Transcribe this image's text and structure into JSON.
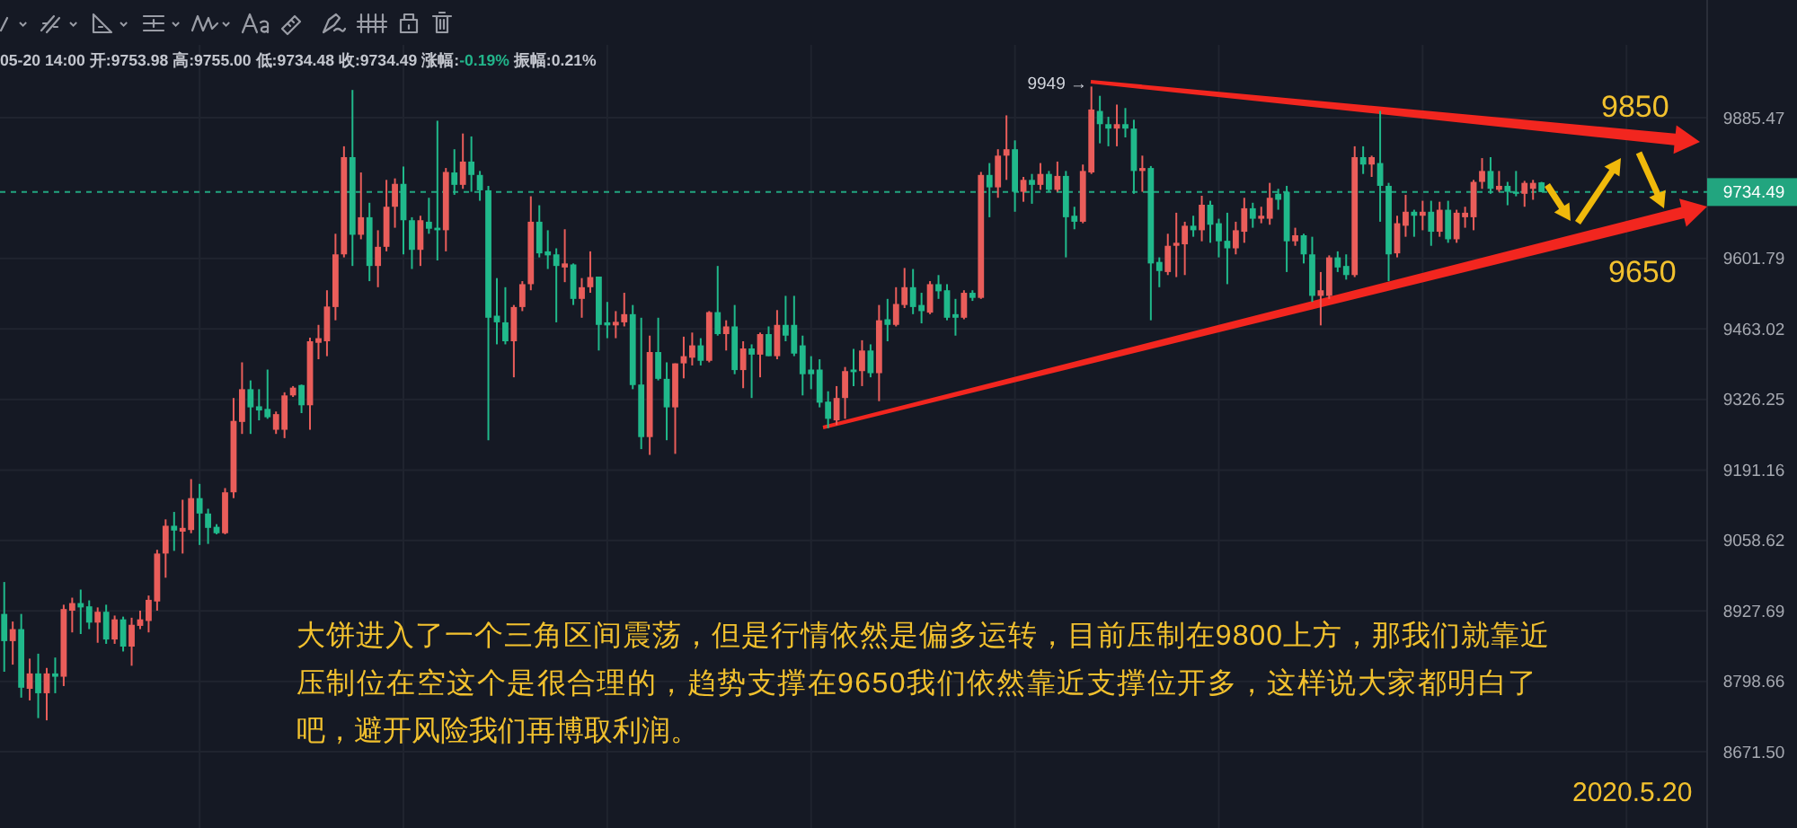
{
  "chart_data": {
    "type": "candlestick",
    "categories": [
      null,
      null,
      null,
      null,
      null,
      null,
      null,
      null,
      null,
      null,
      null,
      null,
      null,
      null,
      null,
      null,
      null,
      null,
      null,
      null,
      null,
      null,
      null,
      null,
      null,
      null,
      null,
      null,
      null,
      null,
      null,
      null,
      null,
      null,
      null,
      null,
      null,
      null,
      null,
      null,
      null,
      null,
      null,
      null,
      null,
      null,
      null,
      null,
      null,
      null,
      null,
      null,
      null,
      null,
      null,
      null,
      null,
      null,
      null,
      null,
      null,
      null,
      null,
      null,
      null,
      null,
      null,
      null,
      null,
      null,
      null,
      null,
      null,
      null,
      null,
      null,
      null,
      null,
      null,
      null,
      null,
      null,
      null,
      null,
      null,
      null,
      null,
      null,
      null,
      null,
      null,
      null,
      null,
      null,
      null,
      null,
      null,
      null,
      null,
      null,
      null,
      null,
      null,
      null,
      null,
      null,
      null,
      null,
      null,
      null,
      null,
      null,
      null,
      null,
      null,
      null,
      null,
      null,
      null,
      null,
      null,
      null,
      null,
      null,
      null,
      null,
      null,
      null,
      null,
      null,
      null,
      null,
      null,
      null,
      null,
      null,
      null,
      null,
      null,
      null,
      null,
      null,
      null,
      null,
      null,
      null,
      null,
      null,
      null,
      null,
      null,
      null,
      null,
      null,
      null,
      null,
      null,
      null,
      null,
      null,
      null,
      null,
      null,
      null,
      null,
      null,
      null,
      null,
      null,
      null,
      null,
      null,
      null,
      null,
      null,
      null,
      null,
      null,
      null,
      null,
      null,
      null,
      null,
      null,
      null,
      null,
      null,
      null,
      null,
      null,
      null,
      null,
      null,
      null,
      null,
      null,
      null,
      null,
      null,
      null,
      null
    ],
    "ohlc": [
      [
        8922,
        8981,
        8816,
        8872
      ],
      [
        8872,
        8908,
        8829,
        8894
      ],
      [
        8894,
        8922,
        8769,
        8787
      ],
      [
        8785,
        8840,
        8764,
        8813
      ],
      [
        8813,
        8849,
        8732,
        8777
      ],
      [
        8777,
        8823,
        8728,
        8813
      ],
      [
        8813,
        8842,
        8777,
        8807
      ],
      [
        8807,
        8939,
        8790,
        8931
      ],
      [
        8928,
        8952,
        8888,
        8942
      ],
      [
        8942,
        8967,
        8885,
        8934
      ],
      [
        8936,
        8947,
        8894,
        8906
      ],
      [
        8906,
        8934,
        8869,
        8926
      ],
      [
        8926,
        8939,
        8867,
        8875
      ],
      [
        8875,
        8919,
        8867,
        8912
      ],
      [
        8912,
        8917,
        8853,
        8862
      ],
      [
        8862,
        8915,
        8827,
        8902
      ],
      [
        8900,
        8928,
        8894,
        8912
      ],
      [
        8909,
        8956,
        8888,
        8948
      ],
      [
        8945,
        9041,
        8928,
        9034
      ],
      [
        9034,
        9098,
        8989,
        9086
      ],
      [
        9086,
        9112,
        9039,
        9077
      ],
      [
        9075,
        9135,
        9034,
        9082
      ],
      [
        9078,
        9174,
        9072,
        9138
      ],
      [
        9138,
        9165,
        9050,
        9109
      ],
      [
        9109,
        9118,
        9052,
        9082
      ],
      [
        9084,
        9089,
        9070,
        9072
      ],
      [
        9072,
        9157,
        9070,
        9149
      ],
      [
        9149,
        9329,
        9138,
        9285
      ],
      [
        9283,
        9398,
        9260,
        9346
      ],
      [
        9346,
        9363,
        9260,
        9311
      ],
      [
        9313,
        9346,
        9286,
        9305
      ],
      [
        9308,
        9384,
        9289,
        9292
      ],
      [
        9268,
        9303,
        9260,
        9298
      ],
      [
        9268,
        9340,
        9252,
        9334
      ],
      [
        9334,
        9352,
        9331,
        9349
      ],
      [
        9354,
        9355,
        9300,
        9315
      ],
      [
        9315,
        9446,
        9268,
        9439
      ],
      [
        9436,
        9471,
        9404,
        9445
      ],
      [
        9439,
        9539,
        9410,
        9507
      ],
      [
        9506,
        9651,
        9480,
        9610
      ],
      [
        9610,
        9827,
        9604,
        9805
      ],
      [
        9805,
        9942,
        9587,
        9649
      ],
      [
        9649,
        9774,
        9640,
        9684
      ],
      [
        9684,
        9713,
        9557,
        9587
      ],
      [
        9587,
        9658,
        9545,
        9625
      ],
      [
        9625,
        9759,
        9616,
        9705
      ],
      [
        9705,
        9762,
        9663,
        9751
      ],
      [
        9751,
        9786,
        9610,
        9678
      ],
      [
        9678,
        9684,
        9581,
        9619
      ],
      [
        9619,
        9687,
        9587,
        9678
      ],
      [
        9675,
        9723,
        9651,
        9661
      ],
      [
        9663,
        9879,
        9598,
        9658
      ],
      [
        9658,
        9783,
        9616,
        9775
      ],
      [
        9774,
        9821,
        9729,
        9749
      ],
      [
        9749,
        9853,
        9741,
        9796
      ],
      [
        9796,
        9847,
        9735,
        9769
      ],
      [
        9769,
        9777,
        9717,
        9738
      ],
      [
        9738,
        9747,
        9248,
        9485
      ],
      [
        9489,
        9563,
        9433,
        9476
      ],
      [
        9476,
        9545,
        9433,
        9439
      ],
      [
        9439,
        9510,
        9369,
        9506
      ],
      [
        9506,
        9557,
        9498,
        9551
      ],
      [
        9551,
        9726,
        9539,
        9675
      ],
      [
        9675,
        9708,
        9604,
        9612
      ],
      [
        9616,
        9658,
        9581,
        9608
      ],
      [
        9610,
        9622,
        9476,
        9587
      ],
      [
        9584,
        9660,
        9555,
        9592
      ],
      [
        9590,
        9592,
        9510,
        9522
      ],
      [
        9522,
        9563,
        9485,
        9545
      ],
      [
        9545,
        9616,
        9534,
        9565
      ],
      [
        9566,
        9566,
        9421,
        9471
      ],
      [
        9476,
        9516,
        9445,
        9470
      ],
      [
        9470,
        9498,
        9445,
        9477
      ],
      [
        9476,
        9534,
        9468,
        9492
      ],
      [
        9492,
        9510,
        9346,
        9354
      ],
      [
        9355,
        9485,
        9231,
        9254
      ],
      [
        9254,
        9450,
        9220,
        9418
      ],
      [
        9418,
        9485,
        9363,
        9366
      ],
      [
        9366,
        9398,
        9248,
        9311
      ],
      [
        9311,
        9396,
        9222,
        9396
      ],
      [
        9396,
        9448,
        9367,
        9410
      ],
      [
        9407,
        9456,
        9392,
        9431
      ],
      [
        9431,
        9445,
        9392,
        9401
      ],
      [
        9401,
        9498,
        9398,
        9496
      ],
      [
        9496,
        9587,
        9450,
        9453
      ],
      [
        9453,
        9480,
        9421,
        9468
      ],
      [
        9468,
        9510,
        9375,
        9383
      ],
      [
        9383,
        9439,
        9348,
        9425
      ],
      [
        9425,
        9433,
        9329,
        9413
      ],
      [
        9413,
        9456,
        9369,
        9453
      ],
      [
        9453,
        9468,
        9410,
        9410
      ],
      [
        9410,
        9500,
        9404,
        9471
      ],
      [
        9471,
        9528,
        9439,
        9450
      ],
      [
        9471,
        9528,
        9410,
        9415
      ],
      [
        9431,
        9450,
        9334,
        9375
      ],
      [
        9384,
        9410,
        9346,
        9375
      ],
      [
        9384,
        9404,
        9311,
        9320
      ],
      [
        9322,
        9342,
        9271,
        9289
      ],
      [
        9286,
        9352,
        9277,
        9329
      ],
      [
        9329,
        9389,
        9289,
        9381
      ],
      [
        9384,
        9424,
        9352,
        9379
      ],
      [
        9381,
        9441,
        9352,
        9421
      ],
      [
        9421,
        9433,
        9369,
        9377
      ],
      [
        9377,
        9510,
        9323,
        9480
      ],
      [
        9482,
        9522,
        9439,
        9471
      ],
      [
        9471,
        9545,
        9468,
        9512
      ],
      [
        9510,
        9583,
        9504,
        9545
      ],
      [
        9545,
        9581,
        9492,
        9506
      ],
      [
        9510,
        9534,
        9474,
        9498
      ],
      [
        9495,
        9557,
        9492,
        9551
      ],
      [
        9551,
        9569,
        9522,
        9537
      ],
      [
        9539,
        9551,
        9480,
        9485
      ],
      [
        9492,
        9522,
        9450,
        9485
      ],
      [
        9485,
        9539,
        9482,
        9534
      ],
      [
        9534,
        9539,
        9518,
        9524
      ],
      [
        9524,
        9775,
        9522,
        9769
      ],
      [
        9769,
        9793,
        9684,
        9744
      ],
      [
        9744,
        9821,
        9723,
        9808
      ],
      [
        9808,
        9890,
        9759,
        9821
      ],
      [
        9821,
        9839,
        9695,
        9735
      ],
      [
        9735,
        9765,
        9715,
        9759
      ],
      [
        9759,
        9771,
        9711,
        9749
      ],
      [
        9749,
        9793,
        9739,
        9771
      ],
      [
        9771,
        9777,
        9735,
        9739
      ],
      [
        9739,
        9796,
        9735,
        9767
      ],
      [
        9767,
        9777,
        9604,
        9684
      ],
      [
        9687,
        9705,
        9660,
        9675
      ],
      [
        9675,
        9790,
        9672,
        9777
      ],
      [
        9774,
        9949,
        9771,
        9902
      ],
      [
        9899,
        9930,
        9833,
        9872
      ],
      [
        9872,
        9887,
        9827,
        9863
      ],
      [
        9863,
        9912,
        9827,
        9872
      ],
      [
        9872,
        9905,
        9845,
        9863
      ],
      [
        9863,
        9881,
        9731,
        9777
      ],
      [
        9777,
        9808,
        9735,
        9783
      ],
      [
        9783,
        9787,
        9480,
        9592
      ],
      [
        9595,
        9604,
        9545,
        9577
      ],
      [
        9575,
        9651,
        9569,
        9627
      ],
      [
        9627,
        9693,
        9565,
        9633
      ],
      [
        9630,
        9675,
        9569,
        9667
      ],
      [
        9667,
        9687,
        9645,
        9658
      ],
      [
        9658,
        9727,
        9636,
        9709
      ],
      [
        9709,
        9717,
        9633,
        9669
      ],
      [
        9672,
        9681,
        9604,
        9636
      ],
      [
        9637,
        9693,
        9551,
        9622
      ],
      [
        9622,
        9675,
        9610,
        9658
      ],
      [
        9655,
        9723,
        9633,
        9702
      ],
      [
        9702,
        9713,
        9663,
        9681
      ],
      [
        9681,
        9705,
        9672,
        9687
      ],
      [
        9681,
        9753,
        9669,
        9723
      ],
      [
        9731,
        9741,
        9699,
        9719
      ],
      [
        9735,
        9747,
        9575,
        9636
      ],
      [
        9636,
        9663,
        9627,
        9648
      ],
      [
        9648,
        9651,
        9592,
        9610
      ],
      [
        9610,
        9645,
        9516,
        9528
      ],
      [
        9528,
        9575,
        9470,
        9539
      ],
      [
        9528,
        9608,
        9522,
        9604
      ],
      [
        9604,
        9616,
        9575,
        9584
      ],
      [
        9587,
        9610,
        9560,
        9569
      ],
      [
        9569,
        9827,
        9565,
        9805
      ],
      [
        9805,
        9827,
        9771,
        9790
      ],
      [
        9790,
        9808,
        9765,
        9805
      ],
      [
        9793,
        9899,
        9675,
        9747
      ],
      [
        9747,
        9753,
        9557,
        9610
      ],
      [
        9612,
        9687,
        9604,
        9672
      ],
      [
        9667,
        9729,
        9645,
        9695
      ],
      [
        9695,
        9699,
        9645,
        9687
      ],
      [
        9687,
        9717,
        9658,
        9695
      ],
      [
        9695,
        9717,
        9627,
        9655
      ],
      [
        9655,
        9715,
        9645,
        9699
      ],
      [
        9699,
        9717,
        9633,
        9640
      ],
      [
        9640,
        9699,
        9633,
        9693
      ],
      [
        9684,
        9705,
        9663,
        9693
      ],
      [
        9684,
        9759,
        9658,
        9755
      ],
      [
        9755,
        9803,
        9741,
        9777
      ],
      [
        9777,
        9805,
        9731,
        9741
      ],
      [
        9739,
        9777,
        9735,
        9747
      ],
      [
        9747,
        9755,
        9708,
        9735
      ],
      [
        9735,
        9777,
        9726,
        9731
      ],
      [
        9731,
        9757,
        9705,
        9753
      ],
      [
        9741,
        9759,
        9719,
        9753
      ],
      [
        9753.98,
        9755.0,
        9734.48,
        9734.49
      ],
      null,
      null,
      null,
      null,
      null,
      null,
      null,
      null,
      null,
      null,
      null,
      null,
      null,
      null,
      null,
      null,
      null,
      null,
      null
    ],
    "colors": [
      "#20b98b",
      "#e95d5a",
      "#20b98b",
      "#e95d5a",
      "#20b98b",
      "#e95d5a",
      "#20b98b",
      "#e95d5a",
      "#e95d5a",
      "#20b98b",
      "#20b98b",
      "#e95d5a",
      "#20b98b",
      "#e95d5a",
      "#20b98b",
      "#e95d5a",
      "#e95d5a",
      "#e95d5a",
      "#e95d5a",
      "#e95d5a",
      "#20b98b",
      "#e95d5a",
      "#e95d5a",
      "#20b98b",
      "#20b98b",
      "#20b98b",
      "#e95d5a",
      "#e95d5a",
      "#e95d5a",
      "#20b98b",
      "#20b98b",
      "#20b98b",
      "#e95d5a",
      "#e95d5a",
      "#e95d5a",
      "#20b98b",
      "#e95d5a",
      "#e95d5a",
      "#e95d5a",
      "#e95d5a",
      "#e95d5a",
      "#20b98b",
      "#e95d5a",
      "#20b98b",
      "#e95d5a",
      "#e95d5a",
      "#e95d5a",
      "#20b98b",
      "#20b98b",
      "#e95d5a",
      "#20b98b",
      "#20b98b",
      "#e95d5a",
      "#20b98b",
      "#e95d5a",
      "#20b98b",
      "#20b98b",
      "#20b98b",
      "#20b98b",
      "#20b98b",
      "#e95d5a",
      "#e95d5a",
      "#e95d5a",
      "#20b98b",
      "#20b98b",
      "#20b98b",
      "#e95d5a",
      "#20b98b",
      "#e95d5a",
      "#e95d5a",
      "#20b98b",
      "#20b98b",
      "#e95d5a",
      "#e95d5a",
      "#20b98b",
      "#20b98b",
      "#e95d5a",
      "#20b98b",
      "#20b98b",
      "#e95d5a",
      "#e95d5a",
      "#e95d5a",
      "#20b98b",
      "#e95d5a",
      "#20b98b",
      "#e95d5a",
      "#20b98b",
      "#e95d5a",
      "#20b98b",
      "#e95d5a",
      "#20b98b",
      "#e95d5a",
      "#20b98b",
      "#20b98b",
      "#20b98b",
      "#20b98b",
      "#20b98b",
      "#20b98b",
      "#e95d5a",
      "#e95d5a",
      "#20b98b",
      "#e95d5a",
      "#20b98b",
      "#e95d5a",
      "#20b98b",
      "#e95d5a",
      "#e95d5a",
      "#20b98b",
      "#20b98b",
      "#e95d5a",
      "#20b98b",
      "#20b98b",
      "#20b98b",
      "#e95d5a",
      "#20b98b",
      "#e95d5a",
      "#20b98b",
      "#e95d5a",
      "#e95d5a",
      "#20b98b",
      "#e95d5a",
      "#20b98b",
      "#e95d5a",
      "#20b98b",
      "#e95d5a",
      "#20b98b",
      "#20b98b",
      "#e95d5a",
      "#e95d5a",
      "#20b98b",
      "#20b98b",
      "#e95d5a",
      "#20b98b",
      "#20b98b",
      "#e95d5a",
      "#20b98b",
      "#20b98b",
      "#e95d5a",
      "#e95d5a",
      "#e95d5a",
      "#20b98b",
      "#e95d5a",
      "#20b98b",
      "#20b98b",
      "#20b98b",
      "#e95d5a",
      "#e95d5a",
      "#20b98b",
      "#e95d5a",
      "#e95d5a",
      "#20b98b",
      "#20b98b",
      "#e95d5a",
      "#20b98b",
      "#20b98b",
      "#e95d5a",
      "#e95d5a",
      "#20b98b",
      "#20b98b",
      "#e95d5a",
      "#20b98b",
      "#e95d5a",
      "#20b98b",
      "#20b98b",
      "#e95d5a",
      "#e95d5a",
      "#20b98b",
      "#e95d5a",
      "#20b98b",
      "#e95d5a",
      "#20b98b",
      "#e95d5a",
      "#e95d5a",
      "#e95d5a",
      "#e95d5a",
      "#20b98b",
      "#e95d5a",
      "#20b98b",
      "#20b98b",
      "#e95d5a",
      "#e95d5a",
      "#20b98b",
      null,
      null,
      null,
      null,
      null,
      null,
      null,
      null,
      null,
      null,
      null,
      null,
      null,
      null,
      null,
      null,
      null,
      null,
      null
    ],
    "ylim": [
      8536,
      10035
    ],
    "yticks": [
      {
        "value": 8671.5,
        "label": "8671.50"
      },
      8798.66,
      8927.69,
      9058.62,
      9191.16,
      9326.25,
      9463.02,
      9601.79,
      9885.47
    ],
    "log": "y",
    "grid": true,
    "tick_labels": "y",
    "ref_lines": [
      {
        "axis": "y",
        "value": 9734.49,
        "label": "9734.49",
        "color": "#22a57f",
        "line_style": "dashed"
      }
    ],
    "annotations": [
      "05-20 14:00 开:9753.98 高:9755.00 低:9734.48 收:9734.49 涨幅:-0.19% 振幅:0.21%",
      "9949 →",
      "9850",
      "9650",
      "大饼进入了一个三角区间震荡，但是行情依然是偏多运转，目前压制在9800上方，那我们就靠近压制位在空这个是很合理的，趋势支撑在9650我们依然靠近支撑位开多，这样说大家都明白了吧，避开风险我们再博取利润。",
      "2020.5.20"
    ]
  }
}
